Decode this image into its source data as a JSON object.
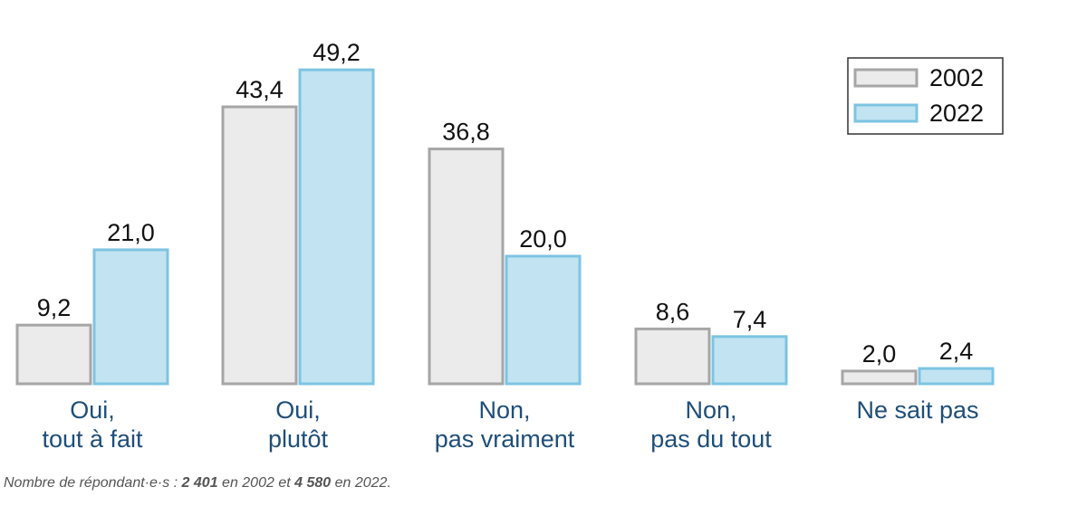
{
  "chart_data": {
    "type": "bar",
    "categories": [
      [
        "Oui,",
        "tout à fait"
      ],
      [
        "Oui,",
        "plutôt"
      ],
      [
        "Non,",
        "pas vraiment"
      ],
      [
        "Non,",
        "pas du tout"
      ],
      [
        "Ne sait pas"
      ]
    ],
    "series": [
      {
        "name": "2002",
        "values": [
          9.2,
          43.4,
          36.8,
          8.6,
          2.0
        ],
        "labels": [
          "9,2",
          "43,4",
          "36,8",
          "8,6",
          "2,0"
        ],
        "fill": "#ebebeb",
        "stroke": "#a6a6a6"
      },
      {
        "name": "2022",
        "values": [
          21.0,
          49.2,
          20.0,
          7.4,
          2.4
        ],
        "labels": [
          "21,0",
          "49,2",
          "20,0",
          "7,4",
          "2,4"
        ],
        "fill": "#c2e3f2",
        "stroke": "#7cc4e2"
      }
    ],
    "ylim": [
      0,
      50
    ],
    "grid": false,
    "legend": "top-right"
  },
  "footnote": {
    "prefix": "Nombre de répondant·e·s : ",
    "n2002": "2 401",
    "mid": " en 2002 et ",
    "n2022": "4 580",
    "suffix": " en 2022."
  }
}
